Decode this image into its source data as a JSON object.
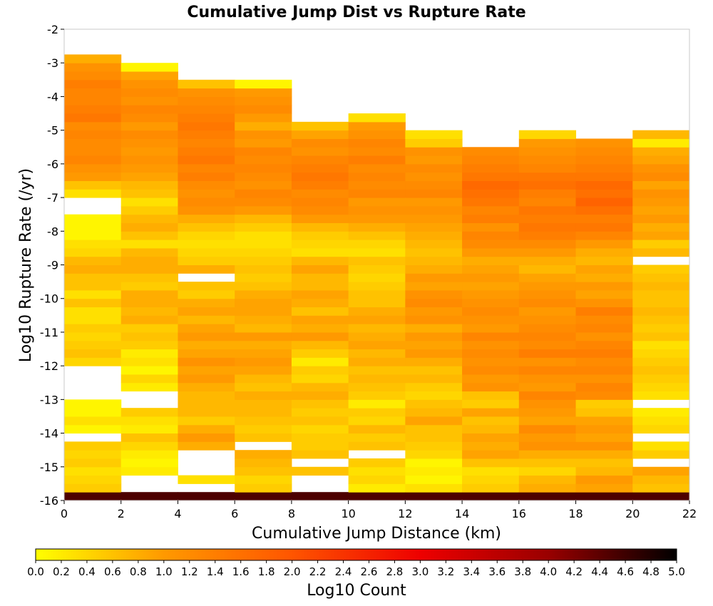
{
  "chart_data": {
    "type": "heatmap",
    "title": "Cumulative Jump Dist vs Rupture Rate",
    "xlabel": "Cumulative Jump Distance (km)",
    "ylabel": "Log10 Rupture Rate (/yr)",
    "colorbar_label": "Log10 Count",
    "xlim": [
      0,
      22
    ],
    "ylim": [
      -16,
      -2
    ],
    "x_ticks": [
      "0",
      "2",
      "4",
      "6",
      "8",
      "10",
      "12",
      "14",
      "16",
      "18",
      "20",
      "22"
    ],
    "y_ticks": [
      "-2",
      "-3",
      "-4",
      "-5",
      "-6",
      "-7",
      "-8",
      "-9",
      "-10",
      "-11",
      "-12",
      "-13",
      "-14",
      "-15",
      "-16"
    ],
    "colorbar_range": [
      0,
      5
    ],
    "colorbar_ticks": [
      "0.0",
      "0.2",
      "0.4",
      "0.6",
      "0.8",
      "1.0",
      "1.2",
      "1.4",
      "1.6",
      "1.8",
      "2.0",
      "2.2",
      "2.4",
      "2.6",
      "2.8",
      "3.0",
      "3.2",
      "3.4",
      "3.6",
      "3.8",
      "4.0",
      "4.2",
      "4.4",
      "4.6",
      "4.8",
      "5.0"
    ],
    "colormap": "hot (yellow to orange to red to black)",
    "colormap_stops": [
      "#ffff00",
      "#ff9900",
      "#ff5500",
      "#ee0000",
      "#990000",
      "#000000"
    ],
    "x_bin_width": 2,
    "y_bin_height": 0.25,
    "columns": [
      {
        "x_start": 0,
        "y_start": -16,
        "cells": [
          4.5,
          0.5,
          0.4,
          0.3,
          0.5,
          0.4,
          0.5,
          null,
          0.1,
          0.3,
          0.1,
          0.1,
          null,
          null,
          null,
          null,
          0.4,
          0.6,
          0.5,
          0.4,
          0.5,
          0.3,
          0.3,
          0.6,
          0.3,
          0.6,
          0.6,
          0.8,
          0.7,
          0.4,
          0.3,
          0.1,
          0.1,
          0.1,
          null,
          null,
          0.3,
          0.6,
          1.0,
          1.1,
          1.3,
          1.2,
          1.2,
          1.3,
          1.2,
          1.5,
          1.4,
          1.3,
          1.3,
          1.4,
          1.2,
          1.1,
          0.8
        ]
      },
      {
        "x_start": 2,
        "y_start": -16,
        "cells": [
          4.5,
          null,
          null,
          0.2,
          0.1,
          0.2,
          0.4,
          0.6,
          0.2,
          0.3,
          0.5,
          null,
          null,
          0.2,
          0.4,
          0.1,
          0.3,
          0.2,
          0.5,
          0.6,
          0.5,
          0.8,
          0.7,
          0.8,
          0.8,
          0.5,
          0.6,
          0.8,
          0.8,
          0.7,
          0.3,
          0.6,
          0.8,
          0.7,
          0.5,
          0.3,
          0.6,
          0.7,
          0.9,
          1.0,
          1.1,
          1.0,
          1.1,
          1.2,
          1.0,
          1.2,
          1.3,
          1.1,
          1.2,
          1.1,
          0.9,
          0.1
        ]
      },
      {
        "x_start": 4,
        "y_start": -16,
        "cells": [
          4.5,
          null,
          0.3,
          null,
          null,
          null,
          0.8,
          1.0,
          0.8,
          0.5,
          0.7,
          0.7,
          0.7,
          0.8,
          1.0,
          0.9,
          1.1,
          0.9,
          0.8,
          1.0,
          0.9,
          0.7,
          0.9,
          0.8,
          0.5,
          0.6,
          null,
          0.8,
          0.5,
          0.4,
          0.3,
          0.4,
          0.6,
          0.8,
          1.1,
          1.2,
          1.1,
          1.2,
          1.4,
          1.3,
          1.5,
          1.4,
          1.3,
          1.4,
          1.5,
          1.4,
          1.3,
          1.2,
          1.1,
          0.6
        ]
      },
      {
        "x_start": 6,
        "y_start": -16,
        "cells": [
          4.5,
          0.5,
          0.4,
          0.6,
          0.7,
          0.8,
          null,
          0.6,
          0.5,
          0.6,
          0.7,
          0.7,
          0.8,
          0.6,
          0.7,
          0.9,
          1.0,
          0.9,
          0.8,
          1.0,
          0.7,
          0.8,
          0.9,
          0.9,
          0.8,
          0.6,
          0.5,
          0.6,
          0.5,
          0.4,
          0.3,
          0.3,
          0.5,
          0.7,
          1.0,
          1.2,
          1.3,
          1.1,
          1.2,
          1.3,
          1.2,
          1.3,
          1.0,
          1.1,
          0.8,
          1.0,
          1.2,
          1.1,
          1.0,
          0.1
        ]
      },
      {
        "x_start": 8,
        "y_start": -16,
        "cells": [
          4.5,
          null,
          null,
          0.6,
          null,
          0.6,
          0.5,
          0.5,
          0.4,
          0.6,
          0.5,
          0.6,
          0.8,
          0.7,
          0.4,
          0.5,
          0.2,
          0.5,
          0.7,
          1.0,
          0.8,
          0.9,
          0.6,
          0.8,
          0.9,
          0.7,
          0.7,
          0.9,
          0.7,
          0.3,
          0.4,
          0.5,
          0.7,
          1.0,
          1.2,
          1.3,
          1.2,
          1.4,
          1.5,
          1.4,
          1.3,
          1.1,
          1.2,
          0.9,
          0.6
        ]
      },
      {
        "x_start": 10,
        "y_start": -16,
        "cells": [
          4.5,
          0.2,
          0.4,
          0.3,
          0.5,
          null,
          0.6,
          0.5,
          0.7,
          0.4,
          0.5,
          0.2,
          0.5,
          0.6,
          0.7,
          0.6,
          0.8,
          0.7,
          0.9,
          0.8,
          0.7,
          0.9,
          0.8,
          0.6,
          0.6,
          0.5,
          0.4,
          0.5,
          0.6,
          0.3,
          0.4,
          0.6,
          0.8,
          1.0,
          1.1,
          1.0,
          1.3,
          1.2,
          1.3,
          1.2,
          1.4,
          1.2,
          1.3,
          1.1,
          1.0,
          0.3
        ]
      },
      {
        "x_start": 12,
        "y_start": -16,
        "cells": [
          4.5,
          0.3,
          0.1,
          0.2,
          0.1,
          0.4,
          0.5,
          0.6,
          0.6,
          0.9,
          0.7,
          0.6,
          0.4,
          0.5,
          0.7,
          0.6,
          0.8,
          1.0,
          0.9,
          1.0,
          0.8,
          1.1,
          1.0,
          1.2,
          1.1,
          0.9,
          1.0,
          0.8,
          0.7,
          0.6,
          0.7,
          0.8,
          0.9,
          1.0,
          1.1,
          1.0,
          1.3,
          1.2,
          1.1,
          1.2,
          1.0,
          1.1,
          0.5,
          0.3
        ]
      },
      {
        "x_start": 14,
        "y_start": -16,
        "cells": [
          4.5,
          0.5,
          0.4,
          0.3,
          0.6,
          0.9,
          0.8,
          0.9,
          0.7,
          0.6,
          0.9,
          0.5,
          0.6,
          1.1,
          1.0,
          1.2,
          1.1,
          1.2,
          1.1,
          1.3,
          1.0,
          1.1,
          1.2,
          1.1,
          1.0,
          0.9,
          1.0,
          0.9,
          0.8,
          1.0,
          1.2,
          1.3,
          1.1,
          1.4,
          1.3,
          1.5,
          1.6,
          1.7,
          1.5,
          1.4,
          1.3,
          1.2
        ]
      },
      {
        "x_start": 16,
        "y_start": -16,
        "cells": [
          4.5,
          0.8,
          0.7,
          0.4,
          0.6,
          0.8,
          1.1,
          1.0,
          1.2,
          0.9,
          1.0,
          1.1,
          1.3,
          1.0,
          1.1,
          1.3,
          1.1,
          1.4,
          1.2,
          1.3,
          1.2,
          1.1,
          1.0,
          1.2,
          1.1,
          1.0,
          0.9,
          0.7,
          0.8,
          1.0,
          1.2,
          1.4,
          1.5,
          1.4,
          1.5,
          1.3,
          1.4,
          1.6,
          1.5,
          1.3,
          1.2,
          1.1,
          1.0,
          0.4
        ]
      },
      {
        "x_start": 18,
        "y_start": -16,
        "cells": [
          4.5,
          0.9,
          1.0,
          0.7,
          0.6,
          0.8,
          1.1,
          0.9,
          1.0,
          0.9,
          0.6,
          0.5,
          1.2,
          1.3,
          1.1,
          1.3,
          1.2,
          1.4,
          1.3,
          1.1,
          1.3,
          1.2,
          1.4,
          1.1,
          0.9,
          1.0,
          0.8,
          0.9,
          0.7,
          0.8,
          1.0,
          1.3,
          1.5,
          1.4,
          1.6,
          1.8,
          1.6,
          1.7,
          1.5,
          1.4,
          1.3,
          1.2,
          1.1
        ]
      },
      {
        "x_start": 20,
        "y_start": -16,
        "cells": [
          4.5,
          0.6,
          0.7,
          0.9,
          null,
          0.5,
          0.3,
          null,
          0.4,
          0.3,
          0.2,
          null,
          0.3,
          0.4,
          0.5,
          0.6,
          0.5,
          0.4,
          0.3,
          0.6,
          0.5,
          0.6,
          0.7,
          0.6,
          0.6,
          0.7,
          0.6,
          0.5,
          null,
          0.7,
          0.5,
          0.9,
          0.8,
          1.0,
          0.9,
          1.0,
          1.1,
          0.9,
          1.2,
          1.1,
          0.9,
          0.8,
          0.2,
          0.7
        ]
      }
    ]
  }
}
